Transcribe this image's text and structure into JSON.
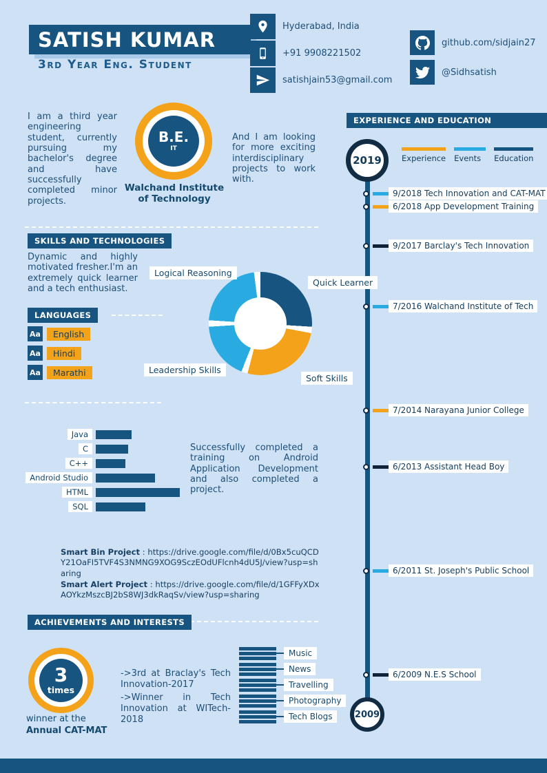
{
  "colors": {
    "background": "#cfe2f5",
    "navy": "#175480",
    "navy_dark": "#122c44",
    "orange": "#f3a21a",
    "cyan": "#29abe2"
  },
  "header": {
    "name": "SATISH KUMAR",
    "subtitle": "3rd Year Eng. Student",
    "contacts": [
      {
        "icon": "location-icon",
        "text": "Hyderabad, India"
      },
      {
        "icon": "phone-icon",
        "text": "+91 9908221502"
      },
      {
        "icon": "send-icon",
        "text": "satishjain53@gmail.com"
      }
    ],
    "social": [
      {
        "icon": "github-icon",
        "text": "github.com/sidjain27"
      },
      {
        "icon": "twitter-icon",
        "text": "@Sidhsatish"
      }
    ]
  },
  "about": {
    "intro": "I am a third year engineering student, currently pursuing my bachelor's degree and have successfully completed minor projects.",
    "badge": {
      "title": "B.E.",
      "subtitle": "IT",
      "caption": "Walchand Institute of Technology"
    },
    "outro": "And I am looking for more exciting interdisciplinary projects to work with."
  },
  "experience": {
    "title": "EXPERIENCE AND EDUCATION",
    "year_start": "2019",
    "year_end": "2009",
    "legend": [
      {
        "label": "Experience",
        "color": "#f3a21a"
      },
      {
        "label": "Events",
        "color": "#29abe2"
      },
      {
        "label": "Education",
        "color": "#175480"
      }
    ],
    "type_colors": {
      "experience": "#f3a21a",
      "events": "#29abe2",
      "education": "#0e2336"
    },
    "items": [
      {
        "date": "9/2018",
        "label": "Tech Innovation and CAT-MAT",
        "type": "events"
      },
      {
        "date": "6/2018",
        "label": "App Development Training",
        "type": "experience"
      },
      {
        "date": "9/2017",
        "label": "Barclay's Tech Innovation",
        "type": "education"
      },
      {
        "date": "7/2016",
        "label": "Walchand Institute of Tech",
        "type": "events"
      },
      {
        "date": "7/2014",
        "label": "Narayana Junior College",
        "type": "experience"
      },
      {
        "date": "6/2013",
        "label": "Assistant Head Boy",
        "type": "education"
      },
      {
        "date": "6/2011",
        "label": "St. Joseph's Public School",
        "type": "events"
      },
      {
        "date": "6/2009",
        "label": "N.E.S School",
        "type": "education"
      }
    ]
  },
  "skills": {
    "title": "SKILLS AND TECHNOLOGIES",
    "intro": "Dynamic and highly motivated fresher.I'm an extremely quick learner and a tech enthusiast.",
    "android_note": "Successfully completed a training on Android Application Development and also completed a project."
  },
  "languages": {
    "title": "LANGUAGES",
    "items": [
      "English",
      "Hindi",
      "Marathi"
    ]
  },
  "projects": [
    {
      "name": "Smart Bin Project",
      "url": "https://drive.google.com/file/d/0Bx5cuQCDY21OaFI5TVF4S3NMNG9XOG9SczEOdUFlcnh4dU5J/view?usp=sharing"
    },
    {
      "name": "Smart Alert Project",
      "url": "https://drive.google.com/file/d/1GFFyXDxAOYkzMszcBJ2bS8WJ3dkRaqSv/view?usp=sharing"
    }
  ],
  "achievements": {
    "title": "ACHIEVEMENTS AND INTERESTS",
    "badge": {
      "number": "3",
      "unit": "times",
      "caption_line1": "winner at the",
      "caption_line2": "Annual CAT-MAT"
    },
    "notes": [
      "->3rd at Braclay's Tech Innovation-2017",
      "->Winner in Tech Innovation at WITech-2018"
    ]
  },
  "interests": [
    "Music",
    "News",
    "Travelling",
    "Photography",
    "Tech Blogs"
  ],
  "chart_data": [
    {
      "type": "pie",
      "subtype": "donut",
      "title": "Soft skills donut",
      "segments": [
        {
          "label": "Quick Learner",
          "color": "#175480",
          "pct": 26
        },
        {
          "label": "Soft Skills",
          "color": "#f3a21a",
          "pct": 26
        },
        {
          "label": "Leadership Skills",
          "color": "#29abe2",
          "pct": 18
        },
        {
          "label": "Logical Reasoning",
          "color": "#29abe2",
          "pct": 22
        }
      ],
      "gap_pct": 2,
      "legend_position": "around"
    },
    {
      "type": "bar",
      "orientation": "horizontal",
      "categories": [
        "Java",
        "C",
        "C++",
        "Android Studio",
        "HTML",
        "SQL"
      ],
      "values": [
        40,
        36,
        33,
        66,
        94,
        55
      ],
      "xlim": [
        0,
        100
      ],
      "color": "#175480"
    }
  ]
}
